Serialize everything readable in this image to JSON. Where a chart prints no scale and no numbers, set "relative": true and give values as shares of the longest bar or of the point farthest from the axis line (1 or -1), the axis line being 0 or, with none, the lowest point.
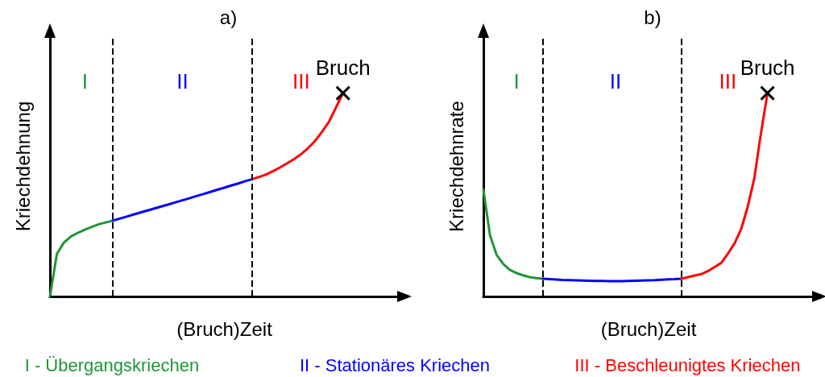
{
  "chart_data": [
    {
      "type": "line",
      "title": "a)",
      "xlabel": "(Bruch)Zeit",
      "ylabel": "Kriechdehnung",
      "relative": true,
      "categories": [
        null,
        null,
        null,
        null,
        null,
        null,
        null,
        null,
        null,
        null,
        null,
        null,
        null,
        null,
        null,
        null,
        null,
        null,
        null,
        null,
        null,
        null,
        null,
        null,
        null,
        null,
        null,
        null,
        null,
        null,
        null,
        null,
        null,
        null,
        null,
        null,
        null,
        null,
        null,
        null,
        null,
        null,
        null,
        null,
        null,
        null,
        null,
        null,
        null,
        null,
        null
      ],
      "series": [
        {
          "name": "I - Übergangskriechen",
          "color": "#1e9638",
          "values": [
            0,
            0.21,
            0.265,
            0.295,
            0.313,
            0.328,
            0.342,
            0.355,
            0.364,
            0.373,
            null,
            null,
            null,
            null,
            null,
            null,
            null,
            null,
            null,
            null,
            null,
            null,
            null,
            null,
            null,
            null,
            null,
            null,
            null,
            null,
            null,
            null,
            null,
            null,
            null,
            null,
            null,
            null,
            null,
            null,
            null,
            null,
            null,
            null,
            null,
            null,
            null,
            null,
            null,
            null,
            null
          ]
        },
        {
          "name": "II - Stationäres Kriechen",
          "color": "#0000ff",
          "values": [
            null,
            null,
            null,
            null,
            null,
            null,
            null,
            null,
            null,
            0.373,
            0.383,
            0.393,
            0.403,
            0.413,
            0.423,
            0.433,
            0.443,
            0.453,
            0.463,
            0.473,
            0.483,
            0.494,
            0.504,
            0.514,
            0.525,
            0.535,
            0.546,
            0.556,
            0.567,
            0.577,
            null,
            null,
            null,
            null,
            null,
            null,
            null,
            null,
            null,
            null,
            null,
            null,
            null,
            null,
            null,
            null,
            null,
            null,
            null,
            null,
            null
          ]
        },
        {
          "name": "III - Beschleunigtes Kriechen",
          "color": "#ff0000",
          "values": [
            null,
            null,
            null,
            null,
            null,
            null,
            null,
            null,
            null,
            null,
            null,
            null,
            null,
            null,
            null,
            null,
            null,
            null,
            null,
            null,
            null,
            null,
            null,
            null,
            null,
            null,
            null,
            null,
            null,
            0.577,
            0.588,
            0.6,
            0.617,
            0.635,
            0.655,
            0.676,
            0.7,
            0.73,
            0.765,
            0.81,
            0.86,
            0.93,
            1,
            null,
            null,
            null,
            null,
            null,
            null,
            null,
            null
          ]
        }
      ],
      "ref_lines": [
        {
          "axis": "x",
          "line_style": "dashed",
          "color": "#000000"
        },
        {
          "axis": "x",
          "line_style": "dashed",
          "color": "#000000"
        }
      ],
      "annotations": [
        "I",
        "II",
        "III",
        "Bruch"
      ]
    },
    {
      "type": "line",
      "title": "b)",
      "xlabel": "(Bruch)Zeit",
      "ylabel": "Kriechdehnrate",
      "relative": true,
      "categories": [
        null,
        null,
        null,
        null,
        null,
        null,
        null,
        null,
        null,
        null,
        null,
        null,
        null,
        null,
        null,
        null,
        null,
        null,
        null,
        null,
        null,
        null,
        null,
        null,
        null,
        null,
        null,
        null,
        null,
        null,
        null,
        null,
        null,
        null,
        null,
        null,
        null,
        null,
        null,
        null,
        null,
        null,
        null,
        null,
        null,
        null,
        null,
        null,
        null,
        null,
        null
      ],
      "series": [
        {
          "color": "#1e9638",
          "values": [
            0.526,
            0.3,
            0.205,
            0.16,
            0.13,
            0.115,
            0.104,
            0.095,
            0.09,
            0.087,
            null,
            null,
            null,
            null,
            null,
            null,
            null,
            null,
            null,
            null,
            null,
            null,
            null,
            null,
            null,
            null,
            null,
            null,
            null,
            null,
            null,
            null,
            null,
            null,
            null,
            null,
            null,
            null,
            null,
            null,
            null,
            null,
            null,
            null,
            null,
            null,
            null,
            null,
            null,
            null,
            null
          ]
        },
        {
          "color": "#0000ff",
          "values": [
            null,
            null,
            null,
            null,
            null,
            null,
            null,
            null,
            null,
            0.087,
            0.085,
            0.083,
            0.081,
            0.08,
            0.079,
            0.078,
            0.077,
            0.076,
            0.076,
            0.075,
            0.075,
            0.075,
            0.076,
            0.077,
            0.078,
            0.079,
            0.08,
            0.082,
            0.084,
            0.085,
            0.087,
            null,
            null,
            null,
            null,
            null,
            null,
            null,
            null,
            null,
            null,
            null,
            null,
            null,
            null,
            null,
            null,
            null,
            null,
            null,
            null
          ]
        },
        {
          "color": "#ff0000",
          "values": [
            null,
            null,
            null,
            null,
            null,
            null,
            null,
            null,
            null,
            null,
            null,
            null,
            null,
            null,
            null,
            null,
            null,
            null,
            null,
            null,
            null,
            null,
            null,
            null,
            null,
            null,
            null,
            null,
            null,
            null,
            0.087,
            0.095,
            0.103,
            0.11,
            0.125,
            0.145,
            0.165,
            0.21,
            0.26,
            0.33,
            0.44,
            0.58,
            0.8,
            1,
            null,
            null,
            null,
            null,
            null,
            null,
            null
          ]
        }
      ],
      "ref_lines": [
        {
          "axis": "x",
          "line_style": "dashed",
          "color": "#000000"
        },
        {
          "axis": "x",
          "line_style": "dashed",
          "color": "#000000"
        }
      ],
      "annotations": [
        "I",
        "II",
        "III",
        "Bruch"
      ]
    }
  ]
}
